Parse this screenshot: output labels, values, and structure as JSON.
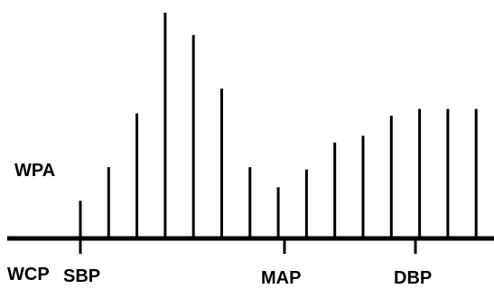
{
  "diagram": {
    "labels": {
      "wpa": "WPA",
      "wcp": "WCP",
      "sbp": "SBP",
      "map": "MAP",
      "dbp": "DBP"
    },
    "pulse_heights": [
      0.16,
      0.31,
      0.55,
      1.0,
      0.9,
      0.66,
      0.31,
      0.22,
      0.3,
      0.42,
      0.45,
      0.54,
      0.57,
      0.57,
      0.57
    ],
    "colors": {
      "line": "#000000",
      "background": "#ffffff",
      "text": "#000000"
    }
  }
}
